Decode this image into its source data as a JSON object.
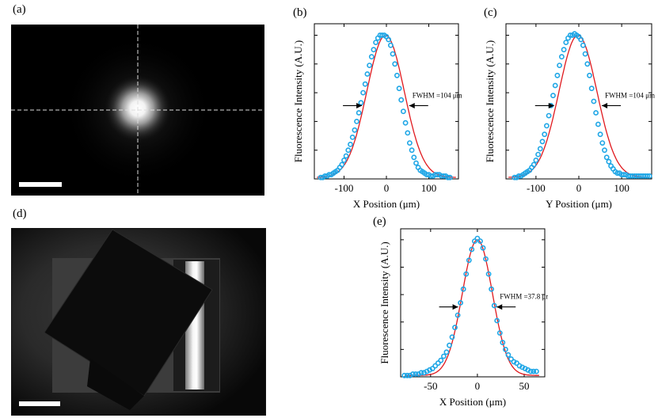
{
  "panels": {
    "a": "(a)",
    "b": "(b)",
    "c": "(c)",
    "d": "(d)",
    "e": "(e)"
  },
  "colors": {
    "fit": "#e0191e",
    "data": "#1ea6e6",
    "background": "#000000"
  },
  "chart_data": [
    {
      "type": "scatter",
      "panel": "(b)",
      "xlabel": "X Position (μm)",
      "ylabel": "Fluorescence Intensity (A.U.)",
      "xlim": [
        -170,
        170
      ],
      "ylim": [
        0,
        1.08
      ],
      "xticks": [
        -100,
        0,
        100
      ],
      "xtick_labels": [
        "-100",
        "0",
        "100"
      ],
      "annotation": "FWHM =104 μm",
      "fwhm": 104,
      "series": [
        {
          "role": "data",
          "x": [
            -155,
            -150,
            -145,
            -140,
            -135,
            -130,
            -125,
            -120,
            -115,
            -110,
            -105,
            -100,
            -95,
            -90,
            -85,
            -80,
            -75,
            -70,
            -65,
            -60,
            -55,
            -50,
            -45,
            -40,
            -35,
            -30,
            -25,
            -20,
            -15,
            -10,
            -5,
            0,
            5,
            10,
            15,
            20,
            25,
            30,
            35,
            40,
            45,
            50,
            55,
            60,
            65,
            70,
            75,
            80,
            85,
            90,
            95,
            100,
            105,
            110,
            115,
            120,
            125,
            130,
            135,
            140,
            145,
            150
          ],
          "y": [
            0.01,
            0.01,
            0.02,
            0.02,
            0.03,
            0.03,
            0.04,
            0.05,
            0.06,
            0.08,
            0.1,
            0.13,
            0.16,
            0.2,
            0.24,
            0.29,
            0.34,
            0.4,
            0.46,
            0.53,
            0.6,
            0.66,
            0.73,
            0.79,
            0.85,
            0.9,
            0.95,
            0.98,
            1.0,
            1.0,
            1.0,
            0.99,
            0.97,
            0.93,
            0.87,
            0.8,
            0.72,
            0.63,
            0.55,
            0.47,
            0.39,
            0.32,
            0.25,
            0.2,
            0.15,
            0.11,
            0.08,
            0.06,
            0.05,
            0.04,
            0.03,
            0.03,
            0.02,
            0.02,
            0.03,
            0.03,
            0.03,
            0.02,
            0.02,
            0.02,
            0.01,
            0.01
          ]
        },
        {
          "role": "fit",
          "type": "gaussian",
          "center": -2,
          "fwhm": 104,
          "amplitude": 0.99,
          "offset": 0.01
        }
      ]
    },
    {
      "type": "scatter",
      "panel": "(c)",
      "xlabel": "Y Position (μm)",
      "ylabel": "Fluorescence Intensity (A.U.)",
      "xlim": [
        -170,
        170
      ],
      "ylim": [
        0,
        1.08
      ],
      "xticks": [
        -100,
        0,
        100
      ],
      "xtick_labels": [
        "-100",
        "0",
        "100"
      ],
      "annotation": "FWHM =104 μm",
      "fwhm": 104,
      "series": [
        {
          "role": "data",
          "x": [
            -150,
            -145,
            -140,
            -135,
            -130,
            -125,
            -120,
            -115,
            -110,
            -105,
            -100,
            -95,
            -90,
            -85,
            -80,
            -75,
            -70,
            -65,
            -60,
            -55,
            -50,
            -45,
            -40,
            -35,
            -30,
            -25,
            -20,
            -15,
            -10,
            -5,
            0,
            5,
            10,
            15,
            20,
            25,
            30,
            35,
            40,
            45,
            50,
            55,
            60,
            65,
            70,
            75,
            80,
            85,
            90,
            95,
            100,
            105,
            110,
            115,
            120,
            125,
            130,
            135,
            140,
            145,
            150,
            155,
            160,
            165
          ],
          "y": [
            0.01,
            0.01,
            0.02,
            0.02,
            0.03,
            0.04,
            0.05,
            0.06,
            0.08,
            0.1,
            0.13,
            0.17,
            0.21,
            0.26,
            0.31,
            0.37,
            0.44,
            0.51,
            0.58,
            0.65,
            0.72,
            0.79,
            0.85,
            0.9,
            0.95,
            0.98,
            1.0,
            1.0,
            1.01,
            1.0,
            0.99,
            0.97,
            0.93,
            0.87,
            0.8,
            0.72,
            0.63,
            0.54,
            0.46,
            0.38,
            0.31,
            0.25,
            0.2,
            0.15,
            0.12,
            0.09,
            0.07,
            0.05,
            0.04,
            0.04,
            0.03,
            0.03,
            0.03,
            0.02,
            0.02,
            0.02,
            0.02,
            0.02,
            0.02,
            0.02,
            0.02,
            0.02,
            0.02,
            0.02
          ]
        },
        {
          "role": "fit",
          "type": "gaussian",
          "center": -2,
          "fwhm": 104,
          "amplitude": 0.99,
          "offset": 0.01
        }
      ]
    },
    {
      "type": "scatter",
      "panel": "(e)",
      "xlabel": "X Position (μm)",
      "ylabel": "Fluorescence Intensity (A.U.)",
      "xlim": [
        -82,
        72
      ],
      "ylim": [
        0,
        1.08
      ],
      "xticks": [
        -50,
        0,
        50
      ],
      "xtick_labels": [
        "-50",
        "0",
        "50"
      ],
      "annotation": "FWHM =37.8 μm",
      "fwhm": 37.8,
      "series": [
        {
          "role": "data",
          "x": [
            -78,
            -75,
            -72,
            -69,
            -66,
            -63,
            -60,
            -57,
            -54,
            -51,
            -48,
            -45,
            -42,
            -39,
            -36,
            -33,
            -30,
            -27,
            -24,
            -21,
            -18,
            -15,
            -12,
            -9,
            -6,
            -3,
            0,
            3,
            6,
            9,
            12,
            15,
            18,
            21,
            24,
            27,
            30,
            33,
            36,
            39,
            42,
            45,
            48,
            51,
            54,
            57,
            60,
            63
          ],
          "y": [
            0.01,
            0.01,
            0.01,
            0.02,
            0.02,
            0.02,
            0.03,
            0.03,
            0.04,
            0.05,
            0.06,
            0.08,
            0.1,
            0.12,
            0.15,
            0.18,
            0.23,
            0.29,
            0.36,
            0.45,
            0.54,
            0.64,
            0.75,
            0.85,
            0.93,
            0.99,
            1.01,
            0.99,
            0.94,
            0.86,
            0.75,
            0.64,
            0.52,
            0.41,
            0.32,
            0.25,
            0.2,
            0.16,
            0.13,
            0.11,
            0.1,
            0.08,
            0.07,
            0.06,
            0.05,
            0.04,
            0.04,
            0.04
          ]
        },
        {
          "role": "fit",
          "type": "gaussian",
          "center": 0,
          "fwhm": 37.8,
          "amplitude": 0.99,
          "offset": 0.01
        }
      ]
    }
  ]
}
